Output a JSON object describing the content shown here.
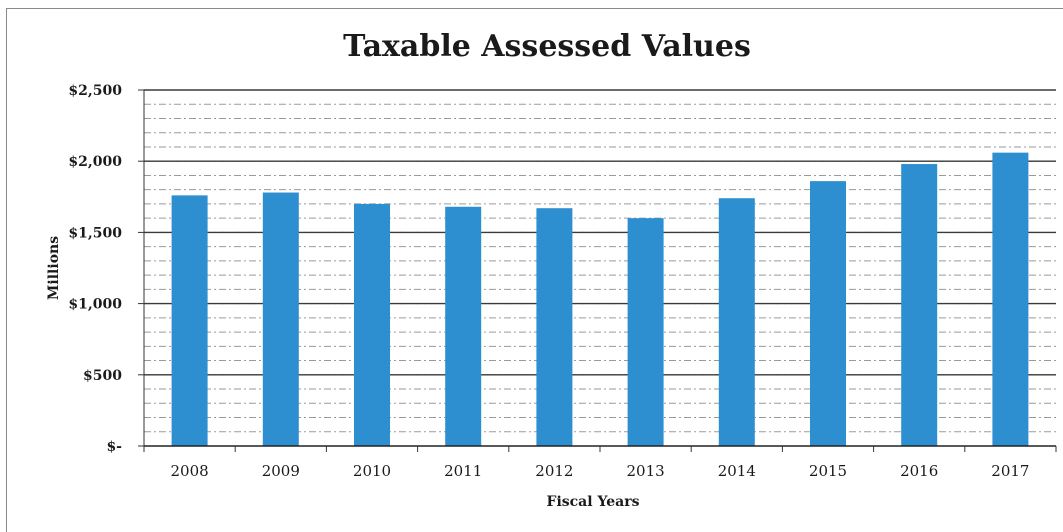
{
  "chart_data": {
    "type": "bar",
    "title": "Taxable Assessed Values",
    "xlabel": "Fiscal Years",
    "ylabel": "Millions",
    "categories": [
      "2008",
      "2009",
      "2010",
      "2011",
      "2012",
      "2013",
      "2014",
      "2015",
      "2016",
      "2017"
    ],
    "values": [
      1760,
      1780,
      1700,
      1680,
      1670,
      1600,
      1740,
      1860,
      1980,
      2060
    ],
    "ylim": [
      0,
      2500
    ],
    "yticks": [
      0,
      500,
      1000,
      1500,
      2000,
      2500
    ],
    "ytick_labels": [
      "$-",
      "$500",
      "$1,000",
      "$1,500",
      "$2,000",
      "$2,500"
    ],
    "grid": true,
    "legend": "none",
    "bar_color": "#2e8fd0"
  }
}
